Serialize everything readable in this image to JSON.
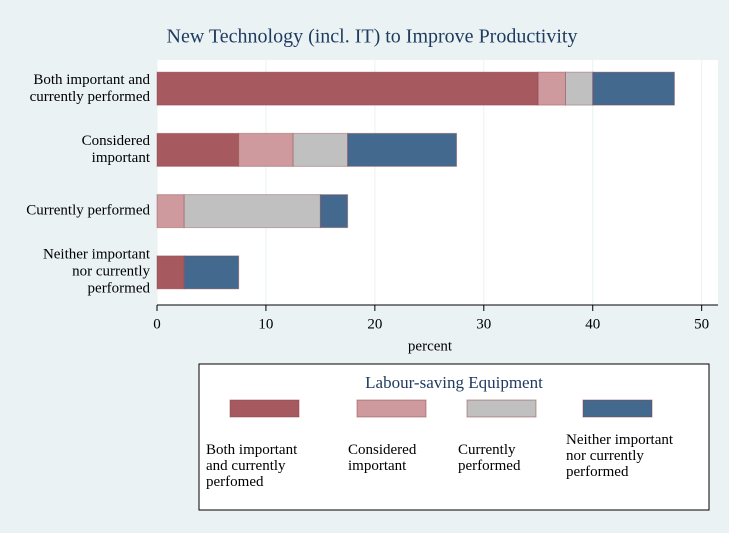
{
  "chart_data": {
    "type": "stacked_bar_horizontal",
    "title": "New Technology (incl. IT) to Improve Productivity",
    "categories": [
      "Both important and currently performed",
      "Considered important",
      "Currently performed",
      "Neither important nor currently performed"
    ],
    "series": [
      {
        "name": "Both important and currently perfomed",
        "color": "#a65a60",
        "values": [
          35,
          7.5,
          0,
          2.5
        ]
      },
      {
        "name": "Considered important",
        "color": "#cf9a9d",
        "values": [
          2.5,
          5,
          2.5,
          0
        ]
      },
      {
        "name": "Currently performed",
        "color": "#c0c0c0",
        "values": [
          2.5,
          5,
          12.5,
          0
        ]
      },
      {
        "name": "Neither important nor currently performed",
        "color": "#44698f",
        "values": [
          7.5,
          10,
          2.5,
          5
        ]
      }
    ],
    "xlabel": "percent",
    "xlim": [
      0,
      51.5
    ],
    "xticks": [
      0,
      10,
      20,
      30,
      40,
      50
    ],
    "grid": true,
    "legend_title": "Labour-saving Equipment",
    "legend": "bottom"
  }
}
